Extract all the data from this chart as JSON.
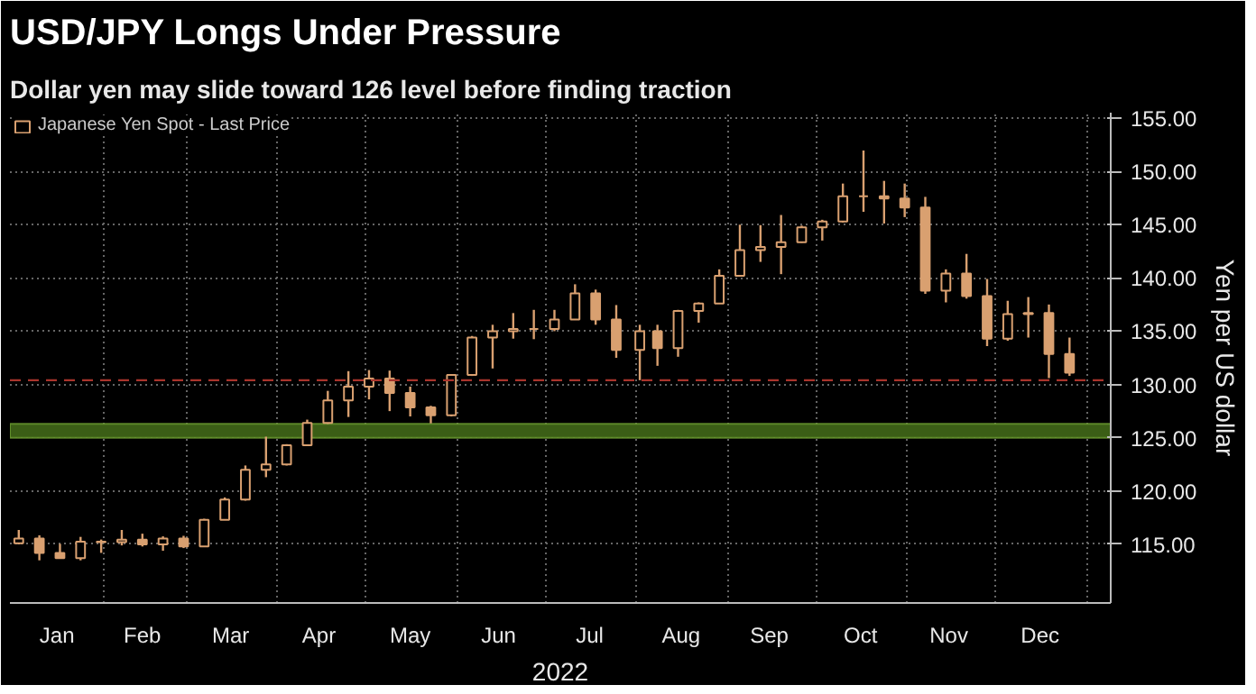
{
  "chart_data": {
    "type": "candlestick",
    "title": "USD/JPY Longs Under Pressure",
    "subtitle": "Dollar yen may slide toward 126 level before finding traction",
    "xlabel": "2022",
    "ylabel": "Yen per US dollar",
    "x": [
      "2022-01-03",
      "2022-01-10",
      "2022-01-17",
      "2022-01-24",
      "2022-01-31",
      "2022-02-07",
      "2022-02-14",
      "2022-02-21",
      "2022-02-28",
      "2022-03-07",
      "2022-03-14",
      "2022-03-21",
      "2022-03-28",
      "2022-04-04",
      "2022-04-11",
      "2022-04-18",
      "2022-04-25",
      "2022-05-02",
      "2022-05-09",
      "2022-05-16",
      "2022-05-23",
      "2022-05-30",
      "2022-06-06",
      "2022-06-13",
      "2022-06-20",
      "2022-06-27",
      "2022-07-04",
      "2022-07-11",
      "2022-07-18",
      "2022-07-25",
      "2022-08-02",
      "2022-08-08",
      "2022-08-15",
      "2022-08-22",
      "2022-08-29",
      "2022-09-05",
      "2022-09-12",
      "2022-09-19",
      "2022-09-26",
      "2022-10-03",
      "2022-10-10",
      "2022-10-17",
      "2022-10-24",
      "2022-10-31",
      "2022-11-07",
      "2022-11-14",
      "2022-11-21",
      "2022-11-28",
      "2022-12-05",
      "2022-12-12",
      "2022-12-19",
      "2022-12-26"
    ],
    "series": [
      {
        "name": "Japanese Yen Spot - Last Price",
        "color": "#d9a070",
        "ohlc": [
          [
            115.1,
            116.35,
            115.0,
            115.55
          ],
          [
            115.55,
            115.85,
            113.5,
            114.2
          ],
          [
            114.2,
            115.05,
            113.7,
            113.7
          ],
          [
            113.7,
            115.7,
            113.5,
            115.25
          ],
          [
            115.25,
            115.45,
            114.2,
            115.2
          ],
          [
            115.2,
            116.35,
            114.9,
            115.45
          ],
          [
            115.45,
            116.0,
            114.8,
            115.0
          ],
          [
            115.0,
            115.75,
            114.4,
            115.55
          ],
          [
            115.55,
            115.8,
            114.65,
            114.8
          ],
          [
            114.8,
            117.4,
            114.8,
            117.3
          ],
          [
            117.3,
            119.4,
            117.3,
            119.2
          ],
          [
            119.2,
            122.4,
            119.1,
            122.0
          ],
          [
            122.0,
            125.1,
            121.3,
            122.5
          ],
          [
            122.5,
            124.4,
            122.4,
            124.3
          ],
          [
            124.3,
            126.7,
            124.3,
            126.4
          ],
          [
            126.4,
            129.4,
            126.3,
            128.5
          ],
          [
            128.5,
            131.25,
            126.95,
            129.8
          ],
          [
            129.8,
            131.35,
            128.6,
            130.55
          ],
          [
            130.55,
            131.3,
            127.5,
            129.2
          ],
          [
            129.2,
            129.8,
            127.0,
            127.85
          ],
          [
            127.85,
            128.0,
            126.35,
            127.1
          ],
          [
            127.1,
            130.95,
            127.0,
            130.9
          ],
          [
            130.9,
            134.55,
            130.8,
            134.4
          ],
          [
            134.4,
            135.6,
            131.5,
            135.0
          ],
          [
            135.0,
            136.7,
            134.3,
            135.2
          ],
          [
            135.2,
            137.0,
            134.25,
            135.2
          ],
          [
            135.2,
            137.0,
            135.0,
            136.1
          ],
          [
            136.1,
            139.4,
            136.1,
            138.55
          ],
          [
            138.55,
            138.9,
            135.6,
            136.1
          ],
          [
            136.1,
            137.45,
            132.5,
            133.25
          ],
          [
            133.25,
            135.6,
            130.4,
            135.0
          ],
          [
            135.0,
            135.6,
            131.75,
            133.4
          ],
          [
            133.4,
            137.0,
            132.6,
            136.9
          ],
          [
            136.9,
            137.7,
            135.8,
            137.6
          ],
          [
            137.6,
            140.8,
            137.6,
            140.2
          ],
          [
            140.2,
            144.99,
            140.2,
            142.6
          ],
          [
            142.6,
            144.95,
            141.5,
            142.9
          ],
          [
            142.9,
            145.9,
            140.35,
            143.35
          ],
          [
            143.35,
            144.9,
            143.3,
            144.75
          ],
          [
            144.75,
            145.45,
            143.5,
            145.3
          ],
          [
            145.3,
            148.85,
            145.2,
            147.65
          ],
          [
            147.65,
            151.95,
            146.2,
            147.65
          ],
          [
            147.65,
            149.1,
            145.1,
            147.45
          ],
          [
            147.45,
            148.85,
            145.7,
            146.6
          ],
          [
            146.6,
            147.6,
            138.5,
            138.8
          ],
          [
            138.8,
            140.8,
            137.7,
            140.4
          ],
          [
            140.4,
            142.25,
            138.05,
            138.3
          ],
          [
            138.3,
            139.9,
            133.6,
            134.3
          ],
          [
            134.3,
            137.85,
            134.1,
            136.6
          ],
          [
            136.6,
            138.2,
            134.4,
            136.7
          ],
          [
            136.7,
            137.5,
            130.6,
            132.85
          ],
          [
            132.85,
            134.4,
            130.8,
            131.1
          ]
        ]
      }
    ],
    "xlim": [
      "2021-12-31",
      "2023-01-09"
    ],
    "xticks": [
      {
        "value": "2022-02-01",
        "label": null
      },
      {
        "value": "2022-03-01",
        "label": null
      },
      {
        "value": "2022-04-01",
        "label": null
      },
      {
        "value": "2022-05-01",
        "label": null
      },
      {
        "value": "2022-06-01",
        "label": null
      },
      {
        "value": "2022-07-01",
        "label": null
      },
      {
        "value": "2022-08-01",
        "label": null
      },
      {
        "value": "2022-09-01",
        "label": null
      },
      {
        "value": "2022-10-01",
        "label": null
      },
      {
        "value": "2022-11-01",
        "label": null
      },
      {
        "value": "2022-12-01",
        "label": null
      },
      {
        "value": "2023-01-01",
        "label": null
      },
      {
        "value": "2022-01-16",
        "label": "Jan"
      },
      {
        "value": "2022-02-14",
        "label": "Feb"
      },
      {
        "value": "2022-03-16",
        "label": "Mar"
      },
      {
        "value": "2022-04-15",
        "label": "Apr"
      },
      {
        "value": "2022-05-16",
        "label": "May"
      },
      {
        "value": "2022-06-15",
        "label": "Jun"
      },
      {
        "value": "2022-07-16",
        "label": "Jul"
      },
      {
        "value": "2022-08-16",
        "label": "Aug"
      },
      {
        "value": "2022-09-15",
        "label": "Sep"
      },
      {
        "value": "2022-10-16",
        "label": "Oct"
      },
      {
        "value": "2022-11-15",
        "label": "Nov"
      },
      {
        "value": "2022-12-16",
        "label": "Dec"
      }
    ],
    "ylim": [
      109.5,
      155.5
    ],
    "yticks": [
      {
        "value": 115,
        "label": "115.00"
      },
      {
        "value": 120,
        "label": "120.00"
      },
      {
        "value": 125,
        "label": "125.00"
      },
      {
        "value": 130,
        "label": "130.00"
      },
      {
        "value": 135,
        "label": "135.00"
      },
      {
        "value": 140,
        "label": "140.00"
      },
      {
        "value": 145,
        "label": "145.00"
      },
      {
        "value": 150,
        "label": "150.00"
      },
      {
        "value": 155,
        "label": "155.00"
      }
    ],
    "grid": true,
    "legend": "top left",
    "ref_lines": [
      {
        "axis": "y",
        "value": 130.4,
        "color": "#a8342c",
        "line_style": "dashed"
      }
    ],
    "bands": [
      {
        "axis": "y",
        "from": 125.0,
        "to": 126.3,
        "color": "#3b5e16"
      }
    ]
  }
}
